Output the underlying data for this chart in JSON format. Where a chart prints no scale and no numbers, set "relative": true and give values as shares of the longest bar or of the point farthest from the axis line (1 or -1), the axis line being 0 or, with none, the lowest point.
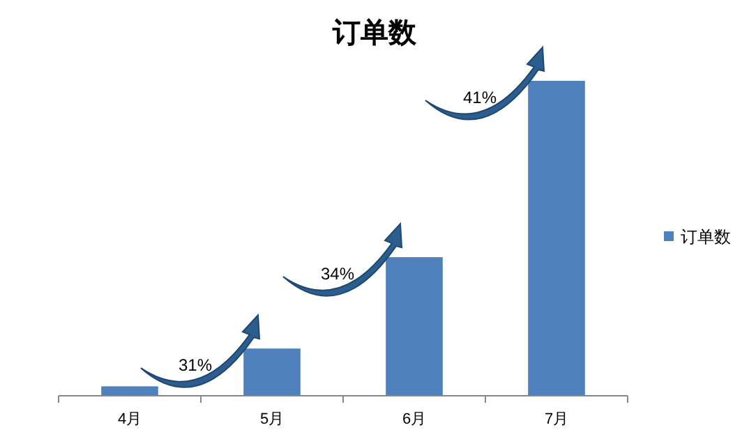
{
  "chart_data": {
    "type": "bar",
    "title": "订单数",
    "categories": [
      "4月",
      "5月",
      "6月",
      "7月"
    ],
    "relative": true,
    "series": [
      {
        "name": "订单数",
        "color": "#4f81bd",
        "values": [
          0.03,
          0.15,
          0.44,
          1
        ]
      }
    ],
    "legend": "right",
    "annotations": [
      "31%",
      "34%",
      "41%"
    ]
  }
}
